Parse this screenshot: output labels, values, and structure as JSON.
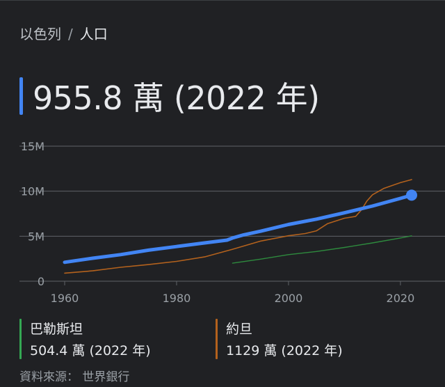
{
  "breadcrumb": {
    "country": "以色列",
    "separator": "/",
    "metric": "人口"
  },
  "headline": {
    "value": "955.8 萬 (2022 年)"
  },
  "chart_data": {
    "type": "line",
    "title": "",
    "xlabel": "",
    "ylabel": "",
    "xlim": [
      1960,
      2022
    ],
    "ylim": [
      0,
      15000000
    ],
    "x_ticks": [
      1960,
      1980,
      2000,
      2020
    ],
    "y_ticks": [
      0,
      5000000,
      10000000,
      15000000
    ],
    "y_tick_labels": [
      "0",
      "5M",
      "10M",
      "15M"
    ],
    "grid": true,
    "series": [
      {
        "name": "以色列",
        "color": "#4285f4",
        "x": [
          1960,
          1965,
          1970,
          1975,
          1980,
          1985,
          1989,
          1990,
          1992,
          1995,
          2000,
          2005,
          2010,
          2015,
          2020,
          2022
        ],
        "y": [
          2100000,
          2550000,
          2950000,
          3450000,
          3850000,
          4250000,
          4560000,
          4800000,
          5150000,
          5550000,
          6300000,
          6900000,
          7600000,
          8350000,
          9200000,
          9558000
        ]
      },
      {
        "name": "約旦",
        "color": "#b4621d",
        "x": [
          1960,
          1965,
          1970,
          1975,
          1980,
          1985,
          1990,
          1995,
          2000,
          2003,
          2005,
          2007,
          2010,
          2012,
          2013,
          2014,
          2015,
          2017,
          2020,
          2022
        ],
        "y": [
          900000,
          1150000,
          1550000,
          1850000,
          2200000,
          2700000,
          3550000,
          4450000,
          5050000,
          5300000,
          5600000,
          6400000,
          7000000,
          7200000,
          7900000,
          8900000,
          9600000,
          10300000,
          10950000,
          11290000
        ]
      },
      {
        "name": "巴勒斯坦",
        "color": "#2e8b3e",
        "x": [
          1990,
          1995,
          2000,
          2005,
          2010,
          2015,
          2020,
          2022
        ],
        "y": [
          2000000,
          2450000,
          2950000,
          3300000,
          3750000,
          4250000,
          4800000,
          5044000
        ]
      }
    ]
  },
  "legend": [
    {
      "name": "巴勒斯坦",
      "value": "504.4 萬 (2022 年)",
      "color": "#34a853"
    },
    {
      "name": "約旦",
      "value": "1129 萬 (2022 年)",
      "color": "#b4621d"
    }
  ],
  "source": "資料來源： 世界銀行"
}
